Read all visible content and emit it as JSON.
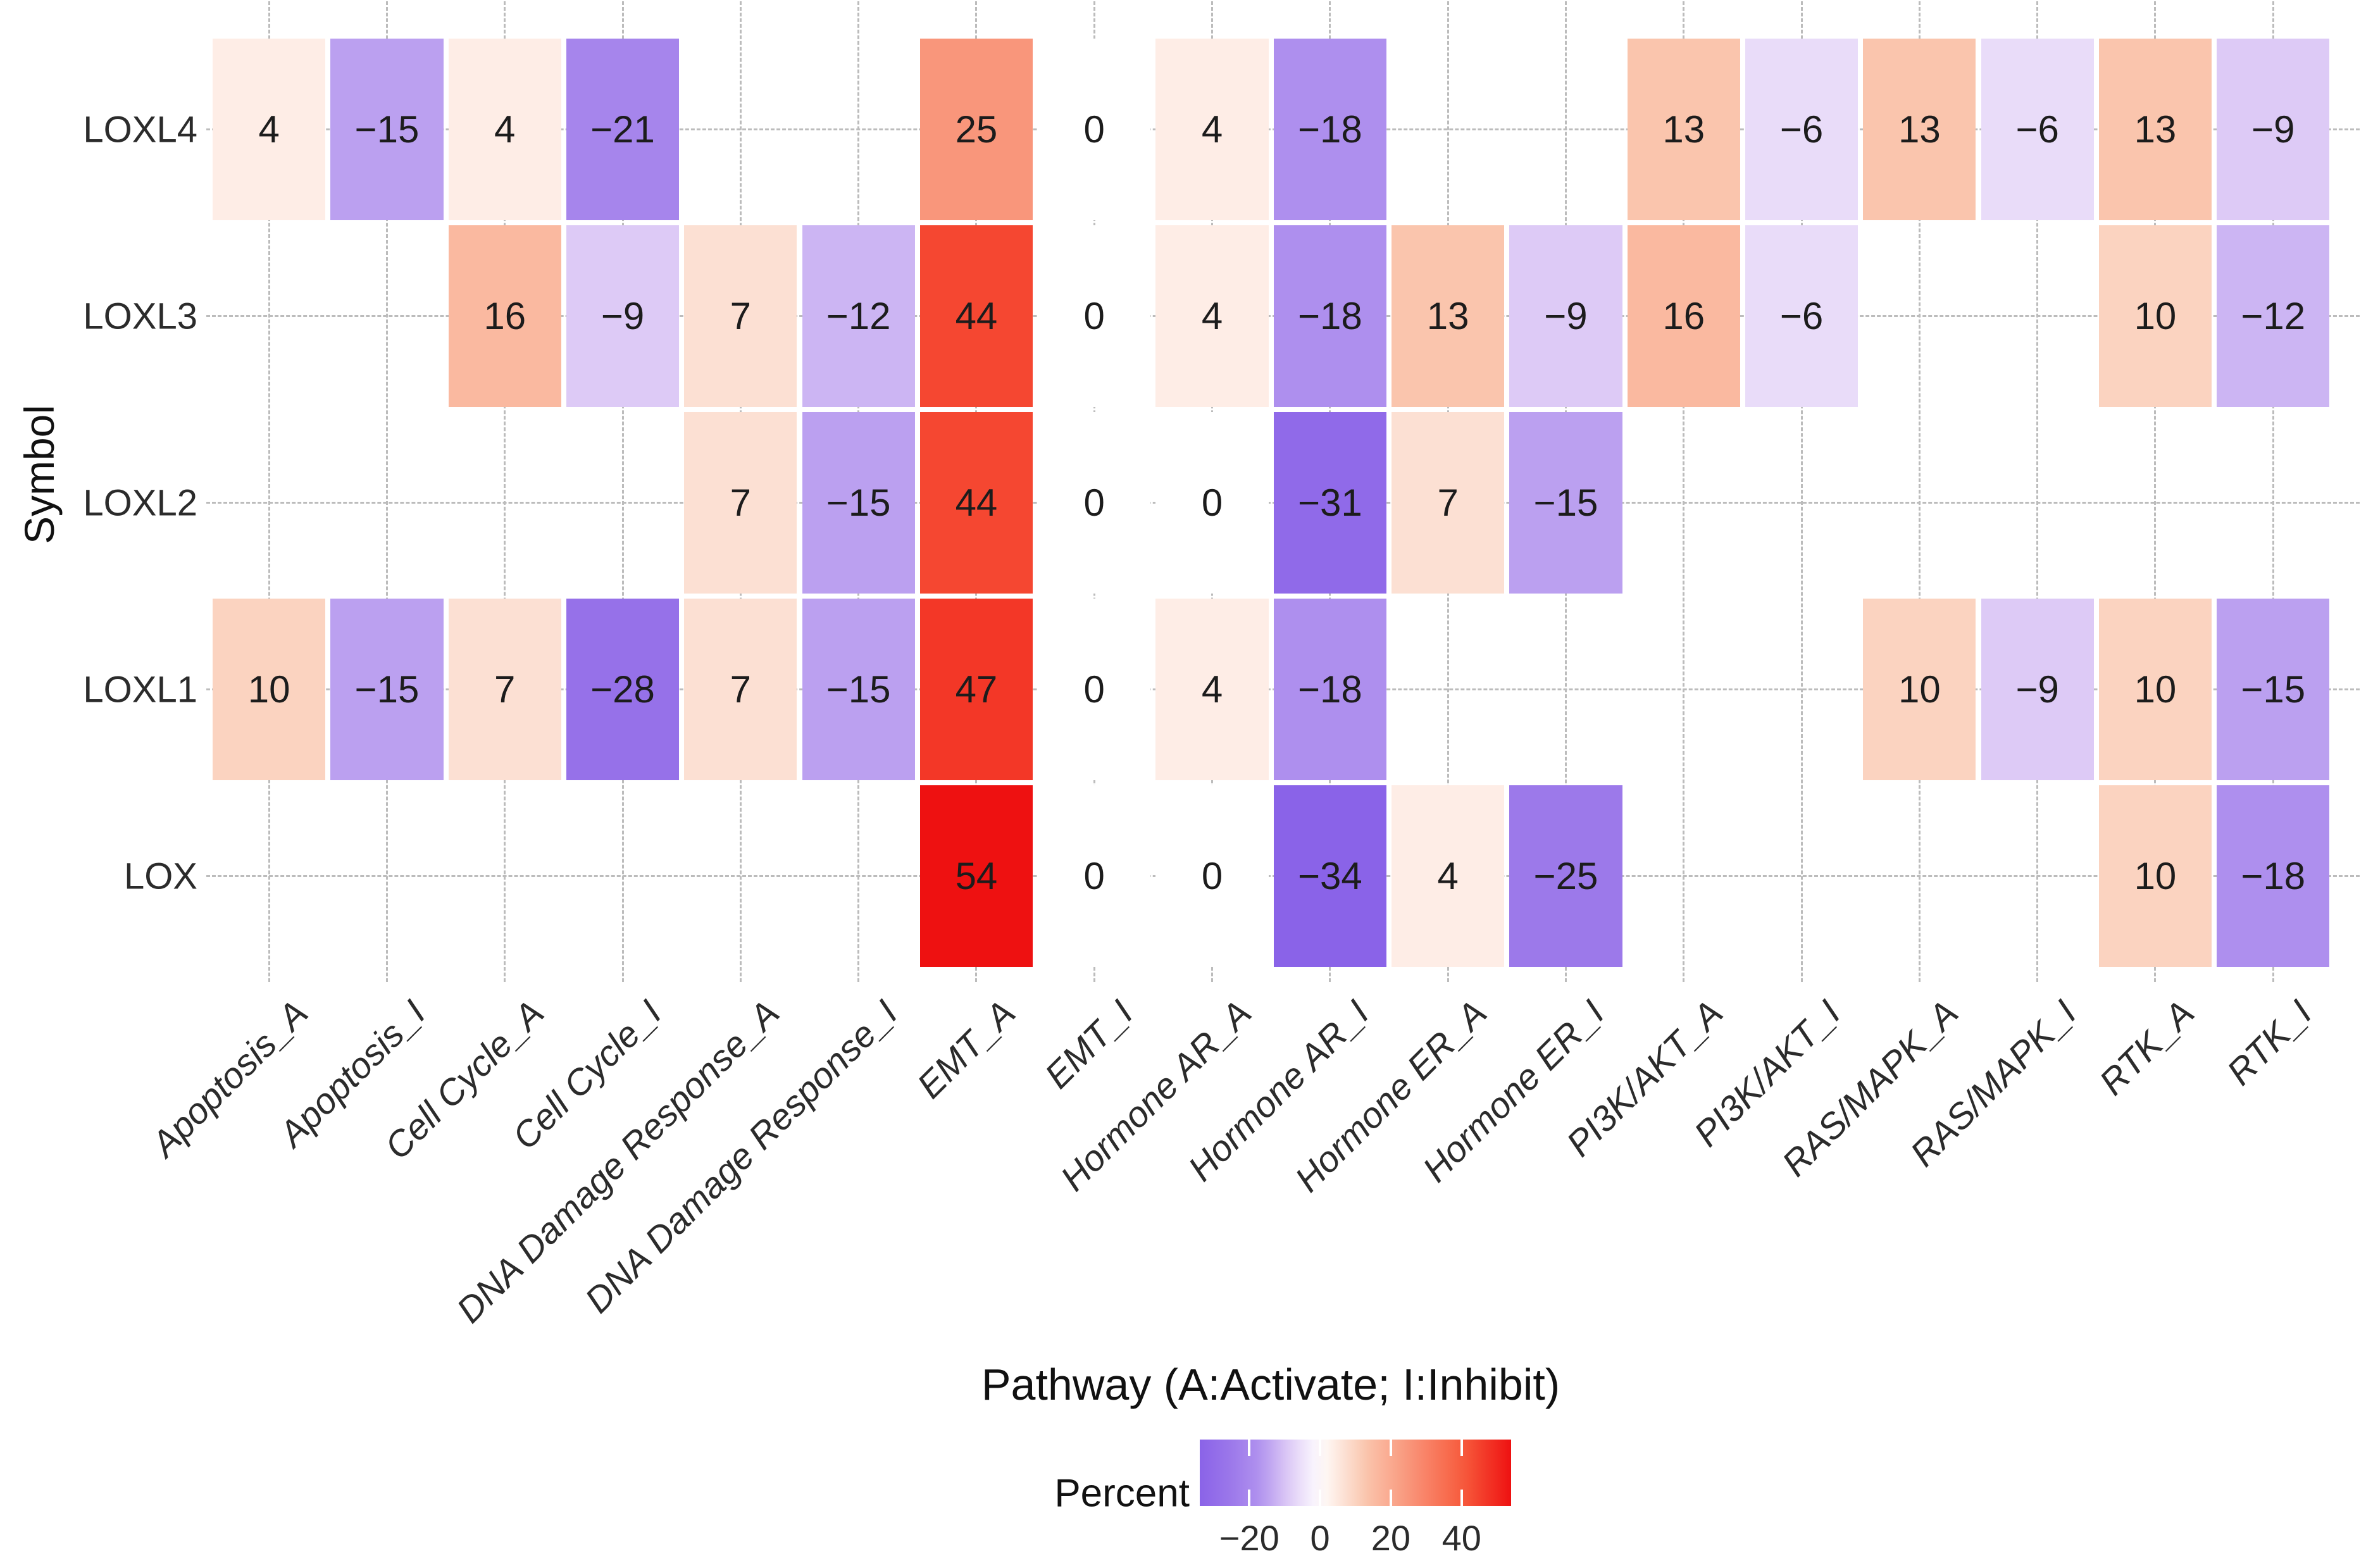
{
  "chart_data": {
    "type": "heatmap",
    "xlabel": "Pathway (A:Activate; I:Inhibit)",
    "ylabel": "Symbol",
    "columns": [
      "Apoptosis_A",
      "Apoptosis_I",
      "Cell Cycle_A",
      "Cell Cycle_I",
      "DNA Damage Response_A",
      "DNA Damage Response_I",
      "EMT_A",
      "EMT_I",
      "Hormone AR_A",
      "Hormone AR_I",
      "Hormone ER_A",
      "Hormone ER_I",
      "PI3K/AKT_A",
      "PI3K/AKT_I",
      "RAS/MAPK_A",
      "RAS/MAPK_I",
      "RTK_A",
      "RTK_I"
    ],
    "rows": [
      "LOXL4",
      "LOXL3",
      "LOXL2",
      "LOXL1",
      "LOX"
    ],
    "values": [
      [
        4,
        -15,
        4,
        -21,
        null,
        null,
        25,
        0,
        4,
        -18,
        null,
        null,
        13,
        -6,
        13,
        -6,
        13,
        -9
      ],
      [
        null,
        null,
        16,
        -9,
        7,
        -12,
        44,
        0,
        4,
        -18,
        13,
        -9,
        16,
        -6,
        null,
        null,
        10,
        -12
      ],
      [
        null,
        null,
        null,
        null,
        7,
        -15,
        44,
        0,
        0,
        -31,
        7,
        -15,
        null,
        null,
        null,
        null,
        null,
        null
      ],
      [
        10,
        -15,
        7,
        -28,
        7,
        -15,
        47,
        0,
        4,
        -18,
        null,
        null,
        null,
        null,
        10,
        -9,
        10,
        -15
      ],
      [
        null,
        null,
        null,
        null,
        null,
        null,
        54,
        0,
        0,
        -34,
        4,
        -25,
        null,
        null,
        null,
        null,
        10,
        -18
      ]
    ],
    "legend": {
      "title": "Percent",
      "ticks": [
        -20,
        0,
        20,
        40
      ],
      "domain_min": -34,
      "domain_max": 54
    },
    "grid": true,
    "colors": {
      "negative_end": "#8A63E8",
      "midpoint": "#FFFFFF",
      "positive_end": "#EE1111",
      "gridline": "#BCBCBC",
      "text": "#1C1C1C"
    }
  }
}
